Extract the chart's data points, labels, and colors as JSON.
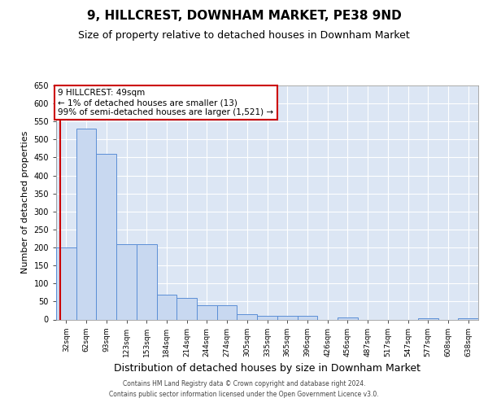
{
  "title": "9, HILLCREST, DOWNHAM MARKET, PE38 9ND",
  "subtitle": "Size of property relative to detached houses in Downham Market",
  "xlabel": "Distribution of detached houses by size in Downham Market",
  "ylabel": "Number of detached properties",
  "categories": [
    "32sqm",
    "62sqm",
    "93sqm",
    "123sqm",
    "153sqm",
    "184sqm",
    "214sqm",
    "244sqm",
    "274sqm",
    "305sqm",
    "335sqm",
    "365sqm",
    "396sqm",
    "426sqm",
    "456sqm",
    "487sqm",
    "517sqm",
    "547sqm",
    "577sqm",
    "608sqm",
    "638sqm"
  ],
  "values": [
    200,
    530,
    460,
    210,
    210,
    70,
    60,
    40,
    40,
    15,
    10,
    10,
    10,
    0,
    5,
    0,
    0,
    0,
    3,
    0,
    3
  ],
  "bar_color": "#c8d8f0",
  "bar_edge_color": "#5b8ed6",
  "bg_color": "#dce6f4",
  "grid_color": "#ffffff",
  "annotation_line1": "9 HILLCREST: 49sqm",
  "annotation_line2": "← 1% of detached houses are smaller (13)",
  "annotation_line3": "99% of semi-detached houses are larger (1,521) →",
  "vline_color": "#cc0000",
  "annotation_box_edgecolor": "#cc0000",
  "ylim": [
    0,
    650
  ],
  "yticks": [
    0,
    50,
    100,
    150,
    200,
    250,
    300,
    350,
    400,
    450,
    500,
    550,
    600,
    650
  ],
  "footer_line1": "Contains HM Land Registry data © Crown copyright and database right 2024.",
  "footer_line2": "Contains public sector information licensed under the Open Government Licence v3.0.",
  "title_fontsize": 11,
  "subtitle_fontsize": 9,
  "ylabel_fontsize": 8,
  "xlabel_fontsize": 9,
  "ytick_fontsize": 7,
  "xtick_fontsize": 6.5,
  "annotation_fontsize": 7.5,
  "footer_fontsize": 5.5
}
